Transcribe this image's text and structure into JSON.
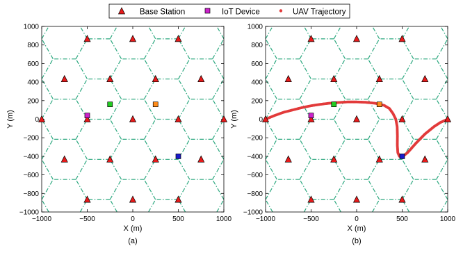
{
  "colors": {
    "grid": "#2ca87f",
    "base_station": "#e81a1a",
    "trajectory": "#e23b3b"
  },
  "legend": {
    "items": [
      {
        "label": "Base Station",
        "marker": "triangle"
      },
      {
        "label": "IoT Device",
        "marker": "square"
      },
      {
        "label": "UAV Trajectory",
        "marker": "dot"
      }
    ]
  },
  "chart_data": [
    {
      "type": "scatter",
      "caption": "(a)",
      "xlabel": "X (m)",
      "ylabel": "Y (m)",
      "xlim": [
        -1000,
        1000
      ],
      "ylim": [
        -1000,
        1000
      ],
      "xticks": [
        -1000,
        -500,
        0,
        500,
        1000
      ],
      "yticks": [
        -1000,
        -800,
        -600,
        -400,
        -200,
        0,
        200,
        400,
        600,
        800,
        1000
      ],
      "hex_grid": {
        "cell_radius": 250,
        "style": "dash-dot"
      },
      "base_stations": [
        [
          -500,
          866
        ],
        [
          0,
          866
        ],
        [
          500,
          866
        ],
        [
          -750,
          433
        ],
        [
          -250,
          433
        ],
        [
          250,
          433
        ],
        [
          750,
          433
        ],
        [
          -1000,
          0
        ],
        [
          -500,
          0
        ],
        [
          0,
          0
        ],
        [
          500,
          0
        ],
        [
          1000,
          0
        ],
        [
          -750,
          -433
        ],
        [
          -250,
          -433
        ],
        [
          250,
          -433
        ],
        [
          750,
          -433
        ],
        [
          -500,
          -866
        ],
        [
          0,
          -866
        ],
        [
          500,
          -866
        ]
      ],
      "iot_devices": [
        {
          "x": -500,
          "y": 40,
          "color": "#cc22cc"
        },
        {
          "x": -250,
          "y": 160,
          "color": "#22cc22"
        },
        {
          "x": 250,
          "y": 160,
          "color": "#ff8c1a"
        },
        {
          "x": 500,
          "y": -400,
          "color": "#1a1acc"
        }
      ],
      "trajectory": []
    },
    {
      "type": "scatter",
      "caption": "(b)",
      "xlabel": "X (m)",
      "ylabel": "Y (m)",
      "xlim": [
        -1000,
        1000
      ],
      "ylim": [
        -1000,
        1000
      ],
      "xticks": [
        -1000,
        -500,
        0,
        500,
        1000
      ],
      "yticks": [
        -1000,
        -800,
        -600,
        -400,
        -200,
        0,
        200,
        400,
        600,
        800,
        1000
      ],
      "hex_grid": {
        "cell_radius": 250,
        "style": "dash-dot"
      },
      "base_stations": [
        [
          -500,
          866
        ],
        [
          0,
          866
        ],
        [
          500,
          866
        ],
        [
          -750,
          433
        ],
        [
          -250,
          433
        ],
        [
          250,
          433
        ],
        [
          750,
          433
        ],
        [
          -1000,
          0
        ],
        [
          -500,
          0
        ],
        [
          0,
          0
        ],
        [
          500,
          0
        ],
        [
          1000,
          0
        ],
        [
          -750,
          -433
        ],
        [
          -250,
          -433
        ],
        [
          250,
          -433
        ],
        [
          750,
          -433
        ],
        [
          -500,
          -866
        ],
        [
          0,
          -866
        ],
        [
          500,
          -866
        ]
      ],
      "iot_devices": [
        {
          "x": -500,
          "y": 40,
          "color": "#cc22cc"
        },
        {
          "x": -250,
          "y": 160,
          "color": "#22cc22"
        },
        {
          "x": 250,
          "y": 160,
          "color": "#ff8c1a"
        },
        {
          "x": 500,
          "y": -400,
          "color": "#1a1acc"
        }
      ],
      "trajectory": [
        [
          -1000,
          0
        ],
        [
          -900,
          40
        ],
        [
          -800,
          75
        ],
        [
          -700,
          100
        ],
        [
          -600,
          125
        ],
        [
          -500,
          145
        ],
        [
          -400,
          160
        ],
        [
          -300,
          172
        ],
        [
          -200,
          180
        ],
        [
          -100,
          186
        ],
        [
          0,
          186
        ],
        [
          100,
          182
        ],
        [
          200,
          172
        ],
        [
          300,
          150
        ],
        [
          360,
          115
        ],
        [
          400,
          60
        ],
        [
          430,
          0
        ],
        [
          445,
          -80
        ],
        [
          448,
          -180
        ],
        [
          447,
          -280
        ],
        [
          452,
          -360
        ],
        [
          470,
          -400
        ],
        [
          500,
          -405
        ],
        [
          560,
          -360
        ],
        [
          650,
          -260
        ],
        [
          750,
          -160
        ],
        [
          850,
          -80
        ],
        [
          920,
          -35
        ],
        [
          1000,
          0
        ]
      ]
    }
  ]
}
